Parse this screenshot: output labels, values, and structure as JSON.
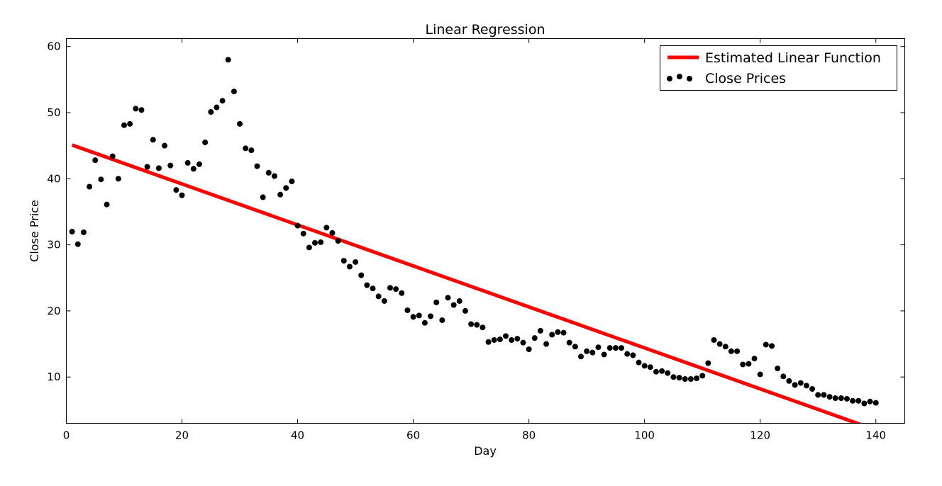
{
  "chart_data": {
    "type": "scatter",
    "title": "Linear Regression",
    "xlabel": "Day",
    "ylabel": "Close Price",
    "xlim": [
      0,
      145
    ],
    "ylim": [
      3,
      61.2
    ],
    "xticks": [
      0,
      20,
      40,
      60,
      80,
      100,
      120,
      140
    ],
    "yticks": [
      10,
      20,
      30,
      40,
      50,
      60
    ],
    "grid": false,
    "legend_position": "top-right",
    "series": [
      {
        "name": "Estimated Linear Function",
        "kind": "line",
        "color": "#ff0000",
        "x": [
          1,
          140
        ],
        "y": [
          45.1,
          2.0
        ]
      },
      {
        "name": "Close Prices",
        "kind": "scatter",
        "color": "#000000",
        "x": [
          1,
          2,
          3,
          4,
          5,
          6,
          7,
          8,
          9,
          10,
          11,
          12,
          13,
          14,
          15,
          16,
          17,
          18,
          19,
          20,
          21,
          22,
          23,
          24,
          25,
          26,
          27,
          28,
          29,
          30,
          31,
          32,
          33,
          34,
          35,
          36,
          37,
          38,
          39,
          40,
          41,
          42,
          43,
          44,
          45,
          46,
          47,
          48,
          49,
          50,
          51,
          52,
          53,
          54,
          55,
          56,
          57,
          58,
          59,
          60,
          61,
          62,
          63,
          64,
          65,
          66,
          67,
          68,
          69,
          70,
          71,
          72,
          73,
          74,
          75,
          76,
          77,
          78,
          79,
          80,
          81,
          82,
          83,
          84,
          85,
          86,
          87,
          88,
          89,
          90,
          91,
          92,
          93,
          94,
          95,
          96,
          97,
          98,
          99,
          100,
          101,
          102,
          103,
          104,
          105,
          106,
          107,
          108,
          109,
          110,
          111,
          112,
          113,
          114,
          115,
          116,
          117,
          118,
          119,
          120,
          121,
          122,
          123,
          124,
          125,
          126,
          127,
          128,
          129,
          130,
          131,
          132,
          133,
          134,
          135,
          136,
          137,
          138,
          139,
          140
        ],
        "y": [
          32.0,
          30.1,
          31.9,
          38.8,
          42.8,
          39.9,
          36.1,
          43.4,
          40.0,
          48.1,
          48.3,
          50.6,
          50.4,
          41.8,
          45.9,
          41.6,
          45.0,
          42.0,
          38.3,
          37.5,
          42.4,
          41.5,
          42.2,
          45.5,
          50.1,
          50.8,
          51.8,
          58.0,
          53.2,
          48.3,
          44.6,
          44.3,
          41.9,
          37.2,
          40.9,
          40.4,
          37.6,
          38.6,
          39.6,
          32.9,
          31.7,
          29.6,
          30.3,
          30.4,
          32.6,
          31.8,
          30.6,
          27.6,
          26.7,
          27.4,
          25.4,
          23.9,
          23.4,
          22.2,
          21.5,
          23.5,
          23.3,
          22.7,
          20.1,
          19.1,
          19.3,
          18.2,
          19.2,
          21.3,
          18.6,
          22.0,
          20.9,
          21.5,
          20.0,
          18.0,
          17.9,
          17.5,
          15.3,
          15.6,
          15.7,
          16.2,
          15.6,
          15.8,
          15.2,
          14.2,
          15.9,
          17.0,
          15.0,
          16.4,
          16.8,
          16.7,
          15.2,
          14.6,
          13.1,
          13.9,
          13.7,
          14.5,
          13.4,
          14.4,
          14.4,
          14.4,
          13.5,
          13.3,
          12.2,
          11.7,
          11.5,
          10.8,
          10.9,
          10.6,
          10.0,
          9.9,
          9.7,
          9.7,
          9.8,
          10.2,
          12.1,
          15.6,
          15.0,
          14.6,
          13.9,
          13.9,
          11.9,
          12.0,
          12.8,
          10.4,
          14.9,
          14.7,
          11.3,
          10.1,
          9.4,
          8.8,
          9.1,
          8.7,
          8.2,
          7.3,
          7.3,
          7.0,
          6.8,
          6.8,
          6.7,
          6.4,
          6.4,
          6.0,
          6.3,
          6.1
        ]
      }
    ]
  }
}
